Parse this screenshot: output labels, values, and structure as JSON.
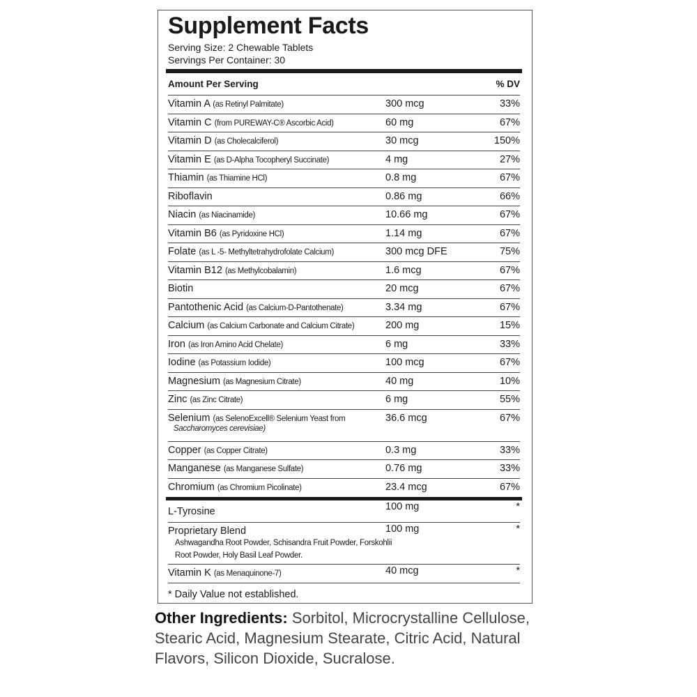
{
  "title": "Supplement Facts",
  "serving_size": "Serving Size: 2 Chewable Tablets",
  "servings_per_container": "Servings Per Container: 30",
  "header": {
    "amount": "Amount Per Serving",
    "dv": "% DV"
  },
  "rows": [
    {
      "name": "Vitamin A",
      "source": "(as Retinyl Palmitate)",
      "amount": "300 mcg",
      "dv": "33%"
    },
    {
      "name": "Vitamin C",
      "source": "(from PUREWAY-C® Ascorbic Acid)",
      "amount": "60 mg",
      "dv": "67%"
    },
    {
      "name": "Vitamin D",
      "source": "(as Cholecalciferol)",
      "amount": "30 mcg",
      "dv": "150%"
    },
    {
      "name": "Vitamin E",
      "source": "(as D-Alpha Tocopheryl Succinate)",
      "amount": "4 mg",
      "dv": "27%"
    },
    {
      "name": "Thiamin",
      "source": "(as Thiamine HCl)",
      "amount": "0.8 mg",
      "dv": "67%"
    },
    {
      "name": "Riboflavin",
      "amount": "0.86 mg",
      "dv": "66%"
    },
    {
      "name": "Niacin",
      "source": "(as Niacinamide)",
      "amount": "10.66 mg",
      "dv": "67%"
    },
    {
      "name": "Vitamin B6",
      "source": "(as Pyridoxine HCl)",
      "amount": "1.14 mg",
      "dv": "67%"
    },
    {
      "name": "Folate",
      "source": "(as L -5- Methyltetrahydrofolate Calcium)",
      "amount": "300 mcg DFE",
      "dv": "75%"
    },
    {
      "name": "Vitamin B12",
      "source": "(as Methylcobalamin)",
      "amount": "1.6 mcg",
      "dv": "67%"
    },
    {
      "name": "Biotin",
      "amount": "20 mcg",
      "dv": "67%"
    },
    {
      "name": "Pantothenic Acid",
      "source": "(as Calcium-D-Pantothenate)",
      "amount": "3.34 mg",
      "dv": "67%"
    },
    {
      "name": "Calcium",
      "source": "(as Calcium Carbonate and Calcium Citrate)",
      "amount": "200 mg",
      "dv": "15%"
    },
    {
      "name": "Iron",
      "source": "(as Iron Amino Acid Chelate)",
      "amount": "6 mg",
      "dv": "33%"
    },
    {
      "name": "Iodine",
      "source": "(as Potassium Iodide)",
      "amount": "100 mcg",
      "dv": "67%"
    },
    {
      "name": "Magnesium",
      "source": "(as Magnesium Citrate)",
      "amount": "40 mg",
      "dv": "10%"
    },
    {
      "name": "Zinc",
      "source": "(as Zinc Citrate)",
      "amount": "6 mg",
      "dv": "55%"
    },
    {
      "name": "Selenium",
      "source": "(as SelenoExcell® Selenium Yeast from",
      "source_italic": "Saccharomyces cerevisiae)",
      "amount": "36.6 mcg",
      "dv": "67%"
    },
    {
      "name": "Copper",
      "source": "(as Copper Citrate)",
      "amount": "0.3 mg",
      "dv": "33%"
    },
    {
      "name": "Manganese",
      "source": "(as Manganese Sulfate)",
      "amount": "0.76 mg",
      "dv": "33%"
    },
    {
      "name": "Chromium",
      "source": "(as Chromium Picolinate)",
      "amount": "23.4 mcg",
      "dv": "67%"
    }
  ],
  "other_rows": [
    {
      "name": "L-Tyrosine",
      "amount": "100 mg",
      "dv": "*"
    },
    {
      "name": "Proprietary Blend",
      "description": "Ashwagandha Root Powder, Schisandra Fruit Powder, Forskohlii Root Powder, Holy Basil Leaf Powder.",
      "amount": "100 mg",
      "dv": "*"
    },
    {
      "name": "Vitamin K",
      "source": "(as Menaquinone-7)",
      "amount": "40 mcg",
      "dv": "*"
    }
  ],
  "footnote": "* Daily Value not established.",
  "other_ingredients": {
    "label": "Other Ingredients:",
    "text": "Sorbitol, Microcrystalline Cellulose, Stearic Acid, Magnesium Stearate, Citric Acid, Natural Flavors, Silicon Dioxide, Sucralose."
  }
}
